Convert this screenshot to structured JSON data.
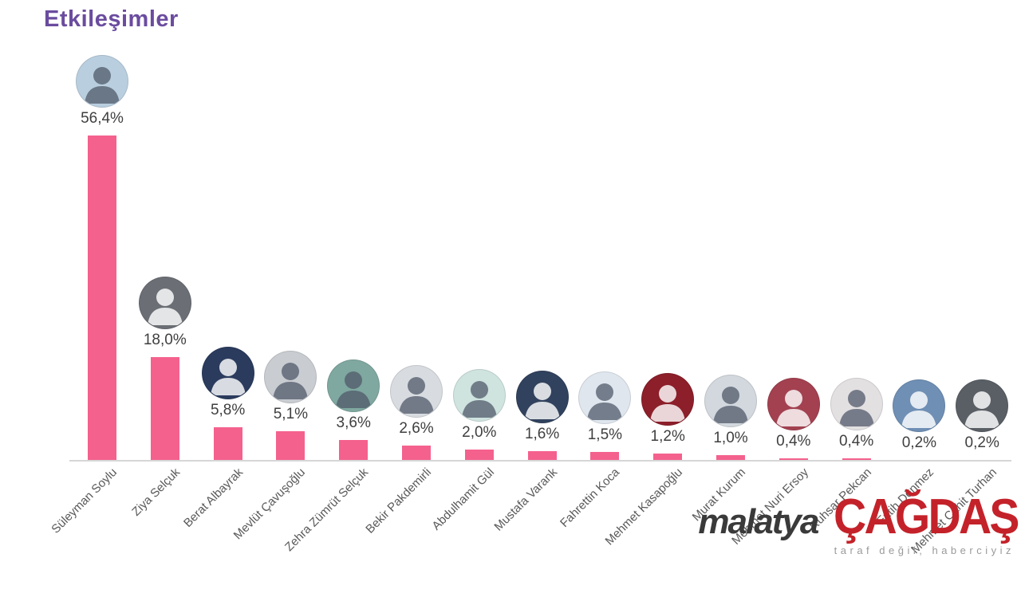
{
  "title": "Etkileşimler",
  "colors": {
    "title": "#6b4c9f",
    "bar": "#f4618d",
    "axis_line": "#d6d6d6",
    "value_label": "#3f3f3f",
    "category_label": "#595959"
  },
  "chart_data": {
    "type": "bar",
    "title": "Etkileşimler",
    "xlabel": "",
    "ylabel": "",
    "unit": "%",
    "ylim": [
      0,
      60
    ],
    "grid": false,
    "legend": "none",
    "bar_color": "#f4618d",
    "categories": [
      "Süleyman Soylu",
      "Ziya Selçuk",
      "Berat Albayrak",
      "Mevlüt Çavuşoğlu",
      "Zehra Zümrüt Selçuk",
      "Bekir Pakdemirli",
      "Abdulhamit Gül",
      "Mustafa Varank",
      "Fahrettin Koca",
      "Mehmet Kasapoğlu",
      "Murat Kurum",
      "Mehmet Nuri Ersoy",
      "Ruhsar Pekcan",
      "Fatih Dönmez",
      "Mehmet Cahit Turhan"
    ],
    "values": [
      56.4,
      18.0,
      5.8,
      5.1,
      3.6,
      2.6,
      2.0,
      1.6,
      1.5,
      1.2,
      1.0,
      0.4,
      0.4,
      0.2,
      0.2
    ],
    "labels": [
      "56,4%",
      "18,0%",
      "5,8%",
      "5,1%",
      "3,6%",
      "2,6%",
      "2,0%",
      "1,6%",
      "1,5%",
      "1,2%",
      "1,0%",
      "0,4%",
      "0,4%",
      "0,2%",
      "0,2%"
    ],
    "avatar_colors": [
      "#b9cfdf",
      "#6b6f75",
      "#2b3b5e",
      "#c9ccd1",
      "#7fa8a0",
      "#d8dce0",
      "#cfe3df",
      "#31425e",
      "#dfe6ee",
      "#8c1f2a",
      "#d3d8de",
      "#a34150",
      "#e3e0e2",
      "#6f8fb5",
      "#5a5f66"
    ]
  },
  "watermark": {
    "part1": "malatya",
    "part2": "ÇAĞDAŞ",
    "tagline": "taraf değil, haberciyiz",
    "part1_color": "#3a3a3a",
    "part2_color": "#c4222a",
    "tagline_color": "#9a9a9a"
  }
}
